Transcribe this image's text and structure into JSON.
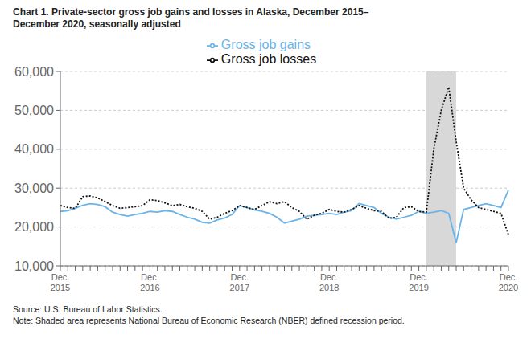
{
  "chart_data": {
    "type": "line",
    "title": "Chart 1. Private-sector gross job gains and losses in Alaska, December 2015–\nDecember 2020, seasonally adjusted",
    "annotations": [
      "Source: U.S. Bureau of Labor Statistics.",
      "Note: Shaded area represents National Bureau of Economic Research (NBER) defined recession period."
    ],
    "categories": [
      "Dec.\n2015",
      null,
      null,
      null,
      null,
      null,
      null,
      null,
      null,
      null,
      null,
      null,
      "Dec.\n2016",
      null,
      null,
      null,
      null,
      null,
      null,
      null,
      null,
      null,
      null,
      null,
      "Dec.\n2017",
      null,
      null,
      null,
      null,
      null,
      null,
      null,
      null,
      null,
      null,
      null,
      "Dec.\n2018",
      null,
      null,
      null,
      null,
      null,
      null,
      null,
      null,
      null,
      null,
      null,
      "Dec.\n2019",
      null,
      null,
      null,
      null,
      null,
      null,
      null,
      null,
      null,
      null,
      null,
      "Dec.\n2020"
    ],
    "series": [
      {
        "name": "Gross job gains",
        "color": "#6ab4e8",
        "line_style": "solid",
        "values": [
          24000,
          24200,
          24800,
          25600,
          26000,
          25800,
          25200,
          23800,
          23200,
          22800,
          23200,
          23500,
          24000,
          23800,
          24200,
          24000,
          23200,
          22500,
          22000,
          21200,
          21000,
          21800,
          22300,
          23200,
          25500,
          25000,
          24400,
          24000,
          23500,
          22500,
          21000,
          21500,
          22000,
          22800,
          23000,
          23200,
          23500,
          23200,
          23800,
          24200,
          26000,
          25500,
          25000,
          23500,
          22500,
          22000,
          22500,
          23000,
          24000,
          23500,
          23800,
          24200,
          23500,
          16000,
          24500,
          25000,
          25500,
          26000,
          25500,
          25000,
          29500
        ]
      },
      {
        "name": "Gross job losses",
        "color": "#111111",
        "line_style": "dotted",
        "values": [
          25500,
          25000,
          24800,
          27800,
          28000,
          27500,
          26500,
          25500,
          24800,
          25000,
          25200,
          25500,
          27000,
          26800,
          26200,
          25500,
          25800,
          25200,
          24800,
          24000,
          22000,
          22500,
          23500,
          24200,
          25500,
          25000,
          24500,
          25500,
          26500,
          26000,
          26500,
          25000,
          24000,
          22000,
          23000,
          23500,
          24500,
          24000,
          23800,
          24500,
          25500,
          24800,
          24200,
          24000,
          22200,
          22500,
          25000,
          25200,
          24000,
          23800,
          40000,
          50000,
          56000,
          42000,
          30000,
          27000,
          25000,
          24500,
          24000,
          23500,
          18000
        ]
      }
    ],
    "shaded_range": {
      "from": 49,
      "to": 53,
      "color": "#d8d8d8"
    },
    "ylim": [
      10000,
      60000
    ],
    "yticks": [
      {
        "value": 10000,
        "label": "10,000"
      },
      {
        "value": 20000,
        "label": "20,000"
      },
      {
        "value": 30000,
        "label": "30,000"
      },
      {
        "value": 40000,
        "label": "40,000"
      },
      {
        "value": 50000,
        "label": "50,000"
      },
      {
        "value": 60000,
        "label": "60,000"
      }
    ],
    "grid": true
  }
}
